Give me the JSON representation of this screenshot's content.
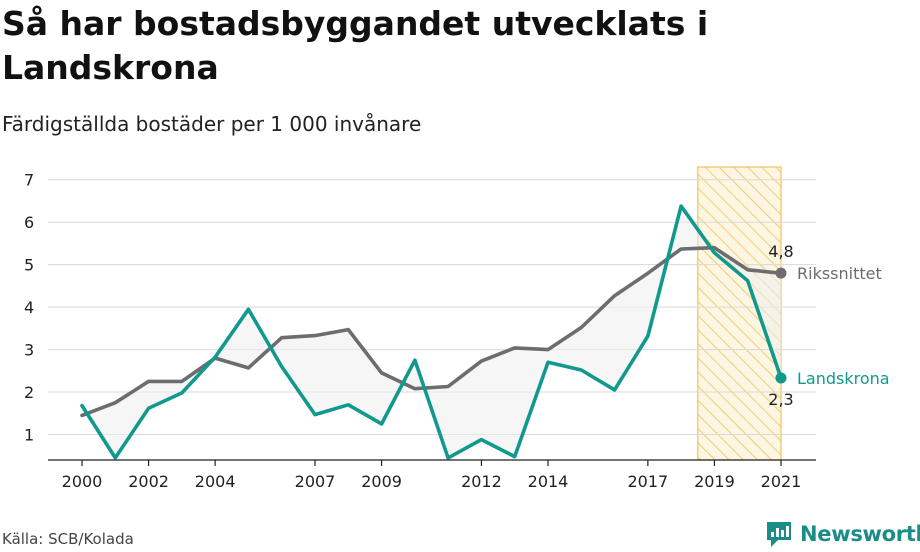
{
  "title": "Så har bostadsbyggandet utvecklats i Landskrona",
  "subtitle": "Färdigställda bostäder per 1 000 invånare",
  "source": "Källa: SCB/Kolada",
  "brand": "Newsworthy",
  "colors": {
    "landskrona": "#10998c",
    "riksnittet": "#6d6c70",
    "highlight": "#f2c25b",
    "grid": "#d9d9d9",
    "fill": "#eeeeee"
  },
  "chart_data": {
    "type": "line",
    "xlim": [
      2000,
      2021
    ],
    "ylim": [
      0.4,
      7.3
    ],
    "y_ticks": [
      1,
      2,
      3,
      4,
      5,
      6,
      7
    ],
    "x_ticks": [
      2000,
      2002,
      2004,
      2007,
      2009,
      2012,
      2014,
      2017,
      2019,
      2021
    ],
    "grid": true,
    "highlight_range": [
      2018.5,
      2021
    ],
    "series": [
      {
        "name": "Rikssnittet",
        "color": "#6d6c70",
        "end_label": "4,8",
        "x": [
          2000,
          2001,
          2002,
          2003,
          2004,
          2005,
          2006,
          2007,
          2008,
          2009,
          2010,
          2011,
          2012,
          2013,
          2014,
          2015,
          2016,
          2017,
          2018,
          2019,
          2020,
          2021
        ],
        "values": [
          1.45,
          1.75,
          2.25,
          2.25,
          2.8,
          2.57,
          3.28,
          3.33,
          3.47,
          2.45,
          2.08,
          2.13,
          2.73,
          3.04,
          3.0,
          3.52,
          4.27,
          4.8,
          5.37,
          5.4,
          4.88,
          4.8
        ]
      },
      {
        "name": "Landskrona",
        "color": "#10998c",
        "end_label": "2,3",
        "x": [
          2000,
          2001,
          2002,
          2003,
          2004,
          2005,
          2006,
          2007,
          2008,
          2009,
          2010,
          2011,
          2012,
          2013,
          2014,
          2015,
          2016,
          2017,
          2018,
          2019,
          2020,
          2021
        ],
        "values": [
          1.68,
          0.45,
          1.62,
          1.98,
          2.82,
          3.95,
          2.6,
          1.47,
          1.7,
          1.25,
          2.75,
          0.45,
          0.88,
          0.48,
          2.7,
          2.52,
          2.05,
          3.32,
          6.38,
          5.28,
          4.62,
          2.33
        ]
      }
    ]
  }
}
